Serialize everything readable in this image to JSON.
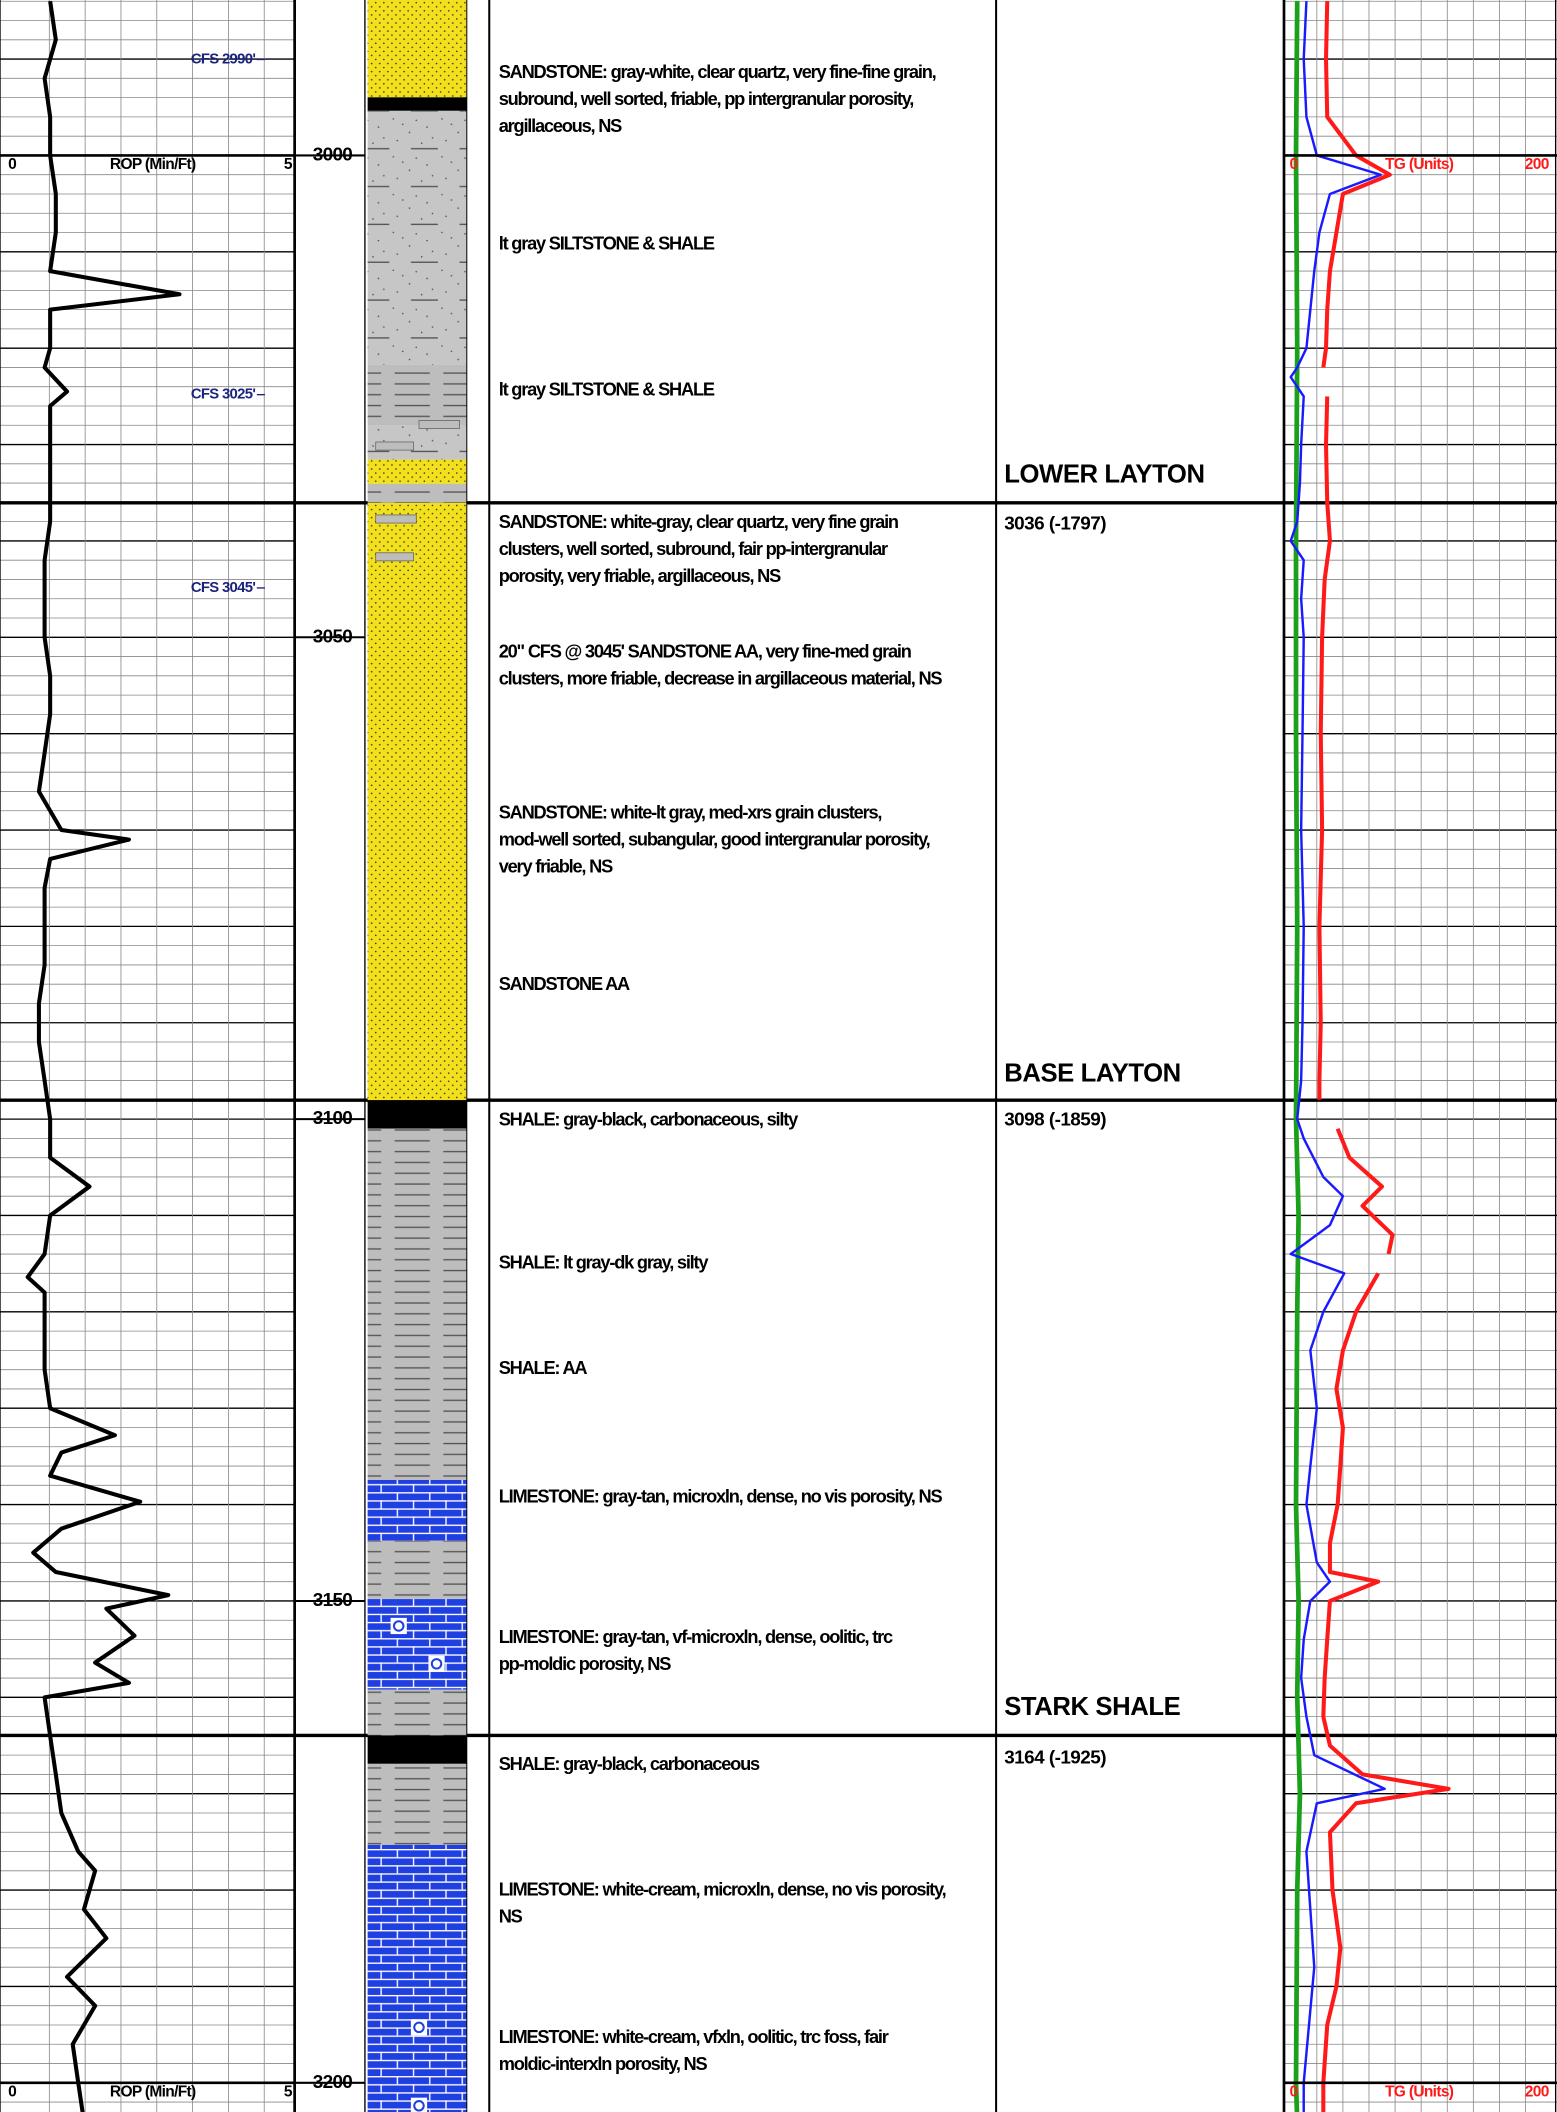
{
  "rop_scale": {
    "label": "ROP (Min/Ft)",
    "min": 0,
    "max": 5
  },
  "tg_scale": {
    "label": "TG (Units)",
    "min": 0,
    "max": 200
  },
  "depth_labels": [
    3000,
    3050,
    3100,
    3150,
    3200
  ],
  "cfs_labels": [
    "CFS 2990'",
    "CFS 3025'",
    "CFS 3045'"
  ],
  "descriptions": [
    [
      "SANDSTONE: gray-white, clear quartz, very fine-fine grain,",
      "subround, well sorted, friable, pp intergranular porosity,",
      "argillaceous, NS"
    ],
    [
      "lt gray SILTSTONE & SHALE"
    ],
    [
      "lt gray SILTSTONE & SHALE"
    ],
    [
      "SANDSTONE: white-gray, clear quartz, very fine grain",
      "clusters, well sorted, subround, fair pp-intergranular",
      "porosity, very friable, argillaceous, NS"
    ],
    [
      "20\" CFS @ 3045' SANDSTONE AA, very fine-med grain",
      "clusters, more friable, decrease in argillaceous material, NS"
    ],
    [
      "SANDSTONE: white-lt gray, med-xrs grain clusters,",
      "mod-well sorted, subangular, good intergranular porosity,",
      "very friable, NS"
    ],
    [
      "SANDSTONE AA"
    ],
    [
      "SHALE: gray-black, carbonaceous, silty"
    ],
    [
      "SHALE: lt gray-dk gray, silty"
    ],
    [
      "SHALE: AA"
    ],
    [
      "LIMESTONE: gray-tan, microxln, dense, no vis porosity, NS"
    ],
    [
      "LIMESTONE: gray-tan, vf-microxln, dense, oolitic, trc",
      "pp-moldic porosity, NS"
    ],
    [
      "SHALE: gray-black, carbonaceous"
    ],
    [
      "LIMESTONE: white-cream, microxln, dense, no vis porosity,",
      "NS"
    ],
    [
      "LIMESTONE: white-cream, vfxln, oolitic, trc foss, fair",
      "moldic-interxln porosity, NS"
    ]
  ],
  "formations": [
    {
      "name": "LOWER LAYTON",
      "top": "3036 (-1797)"
    },
    {
      "name": "BASE LAYTON",
      "top": "3098 (-1859)"
    },
    {
      "name": "STARK SHALE",
      "top": "3164 (-1925)"
    }
  ],
  "rop": {
    "color": "#000000",
    "depths": [
      2984,
      2988,
      2992,
      2996,
      3000,
      3004,
      3008,
      3012,
      3014.4,
      3016,
      3020,
      3022,
      3024.5,
      3026,
      3030,
      3034,
      3038,
      3042,
      3046,
      3050,
      3054,
      3058,
      3062,
      3066,
      3070,
      3071,
      3073,
      3076,
      3080,
      3084,
      3088,
      3092,
      3096,
      3100,
      3104,
      3107,
      3110,
      3114,
      3116.4,
      3118,
      3122,
      3126,
      3130,
      3132.8,
      3134.6,
      3137,
      3139.7,
      3142.5,
      3145,
      3147,
      3149.4,
      3150.8,
      3153.6,
      3156.4,
      3158.5,
      3160,
      3164,
      3168,
      3172,
      3176,
      3178,
      3182,
      3185,
      3189,
      3192,
      3196,
      3200,
      3204
    ],
    "values": [
      0.7,
      0.8,
      0.6,
      0.7,
      0.7,
      0.8,
      0.8,
      0.7,
      3.0,
      0.7,
      0.7,
      0.6,
      1.0,
      0.7,
      0.7,
      0.7,
      0.7,
      0.6,
      0.6,
      0.6,
      0.7,
      0.7,
      0.6,
      0.5,
      0.9,
      2.1,
      0.7,
      0.6,
      0.6,
      0.6,
      0.5,
      0.5,
      0.6,
      0.7,
      0.7,
      1.4,
      0.7,
      0.6,
      0.3,
      0.6,
      0.6,
      0.6,
      0.7,
      1.85,
      0.9,
      0.7,
      2.3,
      0.9,
      0.4,
      0.8,
      2.8,
      1.7,
      2.2,
      1.5,
      2.1,
      0.6,
      0.7,
      0.8,
      0.9,
      1.2,
      1.5,
      1.3,
      1.7,
      1.0,
      1.5,
      1.1,
      1.2,
      1.3
    ]
  },
  "gas_curves": [
    {
      "color": "#1aa01a",
      "depths": [
        2984,
        3000,
        3020,
        3040,
        3060,
        3080,
        3100,
        3110,
        3120,
        3140,
        3150,
        3160,
        3170,
        3180,
        3200,
        3204
      ],
      "values": [
        5,
        4,
        5,
        4,
        4,
        5,
        4,
        6,
        5,
        4,
        6,
        5,
        7,
        5,
        4,
        5
      ]
    },
    {
      "color": "#1a1aff",
      "depths": [
        2984,
        2990,
        2996,
        3000,
        3002,
        3004,
        3008,
        3012,
        3016,
        3020,
        3022,
        3023,
        3025,
        3030,
        3034,
        3038,
        3040,
        3042,
        3046,
        3050,
        3060,
        3070,
        3080,
        3090,
        3096,
        3100,
        3102,
        3106,
        3108,
        3111,
        3114,
        3116,
        3120,
        3124,
        3130,
        3136,
        3140,
        3146,
        3148,
        3150,
        3154,
        3158,
        3162,
        3166,
        3169.5,
        3171,
        3176,
        3182,
        3188,
        3194,
        3200,
        3204
      ],
      "values": [
        12,
        10,
        12,
        20,
        69,
        30,
        22,
        18,
        15,
        12,
        5,
        0,
        10,
        8,
        7,
        5,
        0,
        10,
        8,
        10,
        9,
        8,
        10,
        9,
        8,
        5,
        10,
        25,
        40,
        30,
        0,
        41,
        25,
        15,
        20,
        15,
        12,
        20,
        30,
        15,
        10,
        8,
        12,
        18,
        72,
        20,
        12,
        15,
        18,
        14,
        10,
        10
      ]
    },
    {
      "color": "#ff1a1a",
      "depths": [
        2984,
        2990,
        2996,
        3000,
        3002,
        3004,
        3008,
        3012,
        3016,
        3020,
        3022,
        3023,
        3025,
        3030,
        3036,
        3040,
        3044,
        3050,
        3060,
        3070,
        3080,
        3090,
        3096,
        3098,
        3099,
        3101,
        3104,
        3107,
        3109,
        3112,
        3114,
        3115,
        3116,
        3120,
        3124,
        3128,
        3132,
        3136,
        3140,
        3144,
        3147,
        3148,
        3150,
        3154,
        3158,
        3162,
        3165,
        3168,
        3169.5,
        3171,
        3174,
        3180,
        3186,
        3190,
        3194,
        3200,
        3204
      ],
      "values": [
        28,
        27,
        28,
        50,
        76,
        40,
        35,
        30,
        28,
        27,
        25,
        null,
        28,
        27,
        28,
        30,
        26,
        24,
        23,
        24,
        22,
        23,
        22,
        22,
        null,
        36,
        45,
        70,
        55,
        78,
        75,
        null,
        67,
        50,
        40,
        35,
        40,
        38,
        36,
        30,
        30,
        67,
        30,
        28,
        26,
        25,
        30,
        55,
        121,
        50,
        30,
        32,
        38,
        35,
        28,
        25,
        25
      ]
    }
  ]
}
